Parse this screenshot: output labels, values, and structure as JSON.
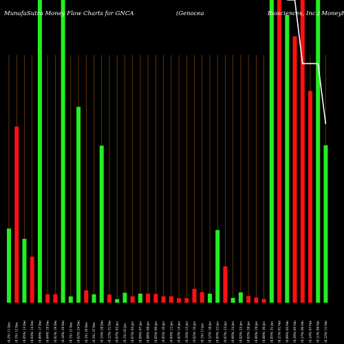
{
  "chart_data": {
    "type": "bar",
    "title_parts": [
      "MunafaSutra  Money Flow  Charts for GNCA",
      "(Genocea",
      "Biosciences,  Inc.) MoneyFlow charts"
    ],
    "colors": {
      "up": "#22ee22",
      "down": "#ff1111",
      "grid": "#8a4a00",
      "line": "#ffffff",
      "background": "#000000"
    },
    "ylim": [
      0,
      100
    ],
    "categories": [
      "(0.2%) 11 Dec",
      "(0.1%) 12 Dec",
      "(0.05%) 13 Dec",
      "(0.04%) 14 Dec",
      "(0.89%) 17 Dec",
      "(0.04%) 18 Dec",
      "(0.01%) 19 Dec",
      "(0.18%) 20 Dec",
      "(0.1%) 21 Dec",
      "(0.02%) 24 Dec",
      "(0.1%) 26 Dec",
      "(0.2%) 27 Dec",
      "(0.15%) 28 Dec",
      "(0.12%) 31 Dec",
      "(0.07%) 02 Jan",
      "(0.1%) 03 Jan",
      "(0.07%) 04 Jan",
      "(0.09%) 07 Jan",
      "(0.08%) 08 Jan",
      "(0.05%) 09 Jan",
      "(0.05%) 10 Jan",
      "(0.04%) 11 Jan",
      "(0.02%) 14 Jan",
      "(0.16%) 15 Jan",
      "(0.02%) 16 Jan",
      "(0.1%) 17 Jan",
      "(0.12%) 18 Jan",
      "(0.05%) 22 Jan",
      "(0.07%) 23 Jan",
      "(0.06%) 24 Jan",
      "(0.02%) 25 Jan",
      "(0.02%) 28 Jan",
      "(0.06%) 29 Jan",
      "(0.08%) 30 Jan",
      "(0.05%) 31 Jan",
      "(0.21%) 01 Feb",
      "(0.09%) 04 Feb",
      "(0.29%) 05 Feb",
      "(0.17%) 06 Feb",
      "(0.14%) 07 Feb",
      "(0.11%) 08 Feb",
      "(0.12%) 11 Feb"
    ],
    "series": [
      {
        "values": [
          24.5,
          58.2,
          21.1,
          15.2,
          100,
          2.8,
          2.8,
          100,
          2.1,
          64.7,
          4.1,
          2.8,
          51.9,
          2.7,
          1.2,
          3.3,
          2.1,
          3.0,
          3.0,
          2.9,
          2.1,
          2.1,
          1.5,
          1.5,
          4.6,
          3.5,
          3.0,
          24.0,
          12.0,
          1.6,
          3.4,
          2.2,
          1.7,
          1.2,
          100,
          100,
          95.0,
          88.0,
          100,
          70.0,
          100,
          52.0
        ],
        "colors": [
          "g",
          "r",
          "g",
          "r",
          "g",
          "r",
          "r",
          "g",
          "g",
          "g",
          "r",
          "g",
          "g",
          "r",
          "g",
          "g",
          "r",
          "g",
          "r",
          "r",
          "r",
          "r",
          "r",
          "r",
          "r",
          "r",
          "g",
          "g",
          "r",
          "g",
          "g",
          "r",
          "r",
          "r",
          "g",
          "r",
          "g",
          "r",
          "r",
          "r",
          "g",
          "g"
        ]
      }
    ],
    "line_values": [
      100,
      100,
      79,
      79,
      79,
      59
    ]
  }
}
